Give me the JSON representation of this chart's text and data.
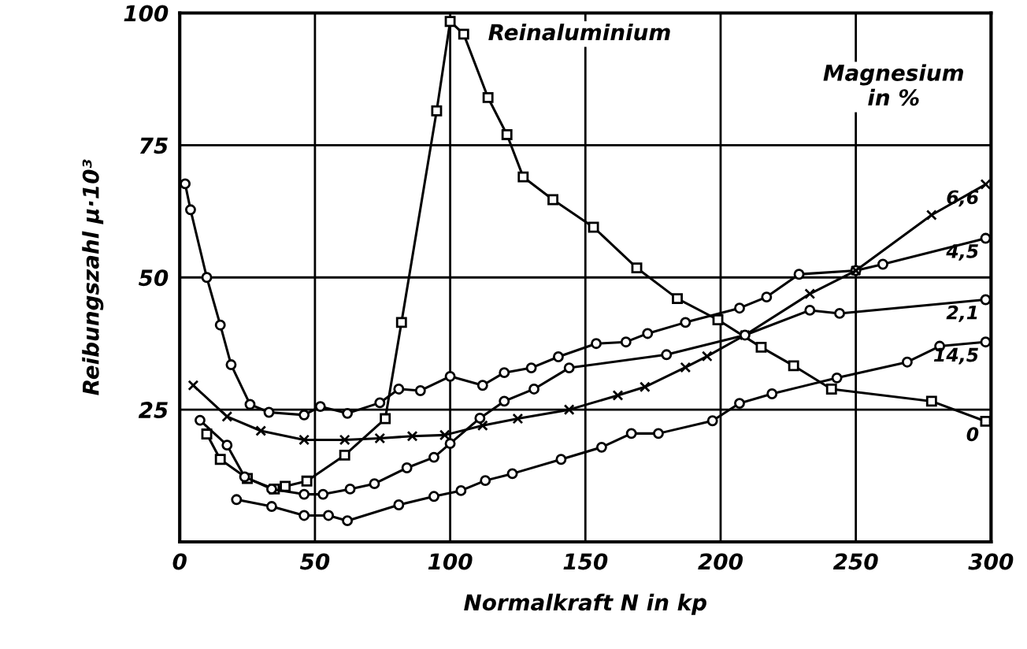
{
  "chart_data": {
    "type": "line",
    "xlabel": "Normalkraft N in kp",
    "ylabel": "Reibungszahl μ·10³",
    "xlim": [
      0,
      300
    ],
    "xticks": [
      0,
      50,
      100,
      150,
      200,
      250,
      300
    ],
    "ylim": [
      0,
      100
    ],
    "yticks": [
      25,
      50,
      75,
      100
    ],
    "grid": true,
    "legend": false,
    "annotations": [
      "Reinaluminium",
      "Magnesium\nin %"
    ],
    "series": [
      {
        "name": "0",
        "color": "#000000",
        "marker": "square",
        "x": [
          10,
          15,
          25,
          35,
          39,
          47,
          61,
          76,
          82,
          95,
          100,
          105,
          114,
          121,
          127,
          138,
          153,
          169,
          184,
          199,
          215,
          227,
          241,
          278,
          298
        ],
        "values": [
          20.4,
          15.6,
          12,
          10,
          10.5,
          11.5,
          16.4,
          23.3,
          41.5,
          81.5,
          98.4,
          96,
          84,
          77,
          69,
          64.7,
          59.5,
          51.8,
          46,
          42,
          36.8,
          33.3,
          28.9,
          26.6,
          22.8
        ]
      },
      {
        "name": "4,5",
        "color": "#000000",
        "marker": "circle",
        "x": [
          2,
          4,
          10,
          15,
          19,
          26,
          33,
          46,
          52,
          62,
          74,
          81,
          89,
          100,
          112,
          120,
          130,
          140,
          154,
          165,
          173,
          187,
          207,
          217,
          229,
          250,
          260,
          298
        ],
        "values": [
          67.7,
          62.8,
          50,
          41,
          33.5,
          26,
          24.5,
          24,
          25.6,
          24.3,
          26.3,
          28.9,
          28.6,
          31.3,
          29.6,
          32,
          32.9,
          35,
          37.5,
          37.8,
          39.4,
          41.5,
          44.2,
          46.3,
          50.6,
          51.3,
          52.5,
          57.4
        ]
      },
      {
        "name": "6,6",
        "color": "#000000",
        "marker": "cross",
        "x": [
          5,
          17.5,
          30,
          46,
          61,
          74,
          86,
          98,
          112,
          125,
          144,
          162,
          172,
          187,
          195,
          209,
          233,
          250,
          278,
          298
        ],
        "values": [
          29.6,
          23.7,
          21,
          19.3,
          19.3,
          19.6,
          20,
          20.2,
          22,
          23.3,
          25,
          27.7,
          29.3,
          33,
          35.1,
          39.1,
          46.9,
          51.3,
          61.8,
          67.6
        ]
      },
      {
        "name": "2,1",
        "color": "#000000",
        "marker": "circle",
        "x": [
          7.5,
          17.5,
          24,
          34,
          46,
          53,
          63,
          72,
          84,
          94,
          100,
          111,
          120,
          131,
          144,
          180,
          209,
          233,
          244,
          298
        ],
        "values": [
          23,
          18.3,
          12.3,
          10,
          9,
          9,
          10,
          11,
          14,
          16,
          18.6,
          23.4,
          26.6,
          28.9,
          32.9,
          35.4,
          39.1,
          43.8,
          43.2,
          45.8
        ]
      },
      {
        "name": "14,5",
        "color": "#000000",
        "marker": "circle",
        "x": [
          21,
          34,
          46,
          55,
          62,
          81,
          94,
          104,
          113,
          123,
          141,
          156,
          167,
          177,
          197,
          207,
          219,
          243,
          269,
          281,
          298
        ],
        "values": [
          8,
          6.7,
          5,
          5,
          4,
          7,
          8.6,
          9.7,
          11.6,
          12.9,
          15.6,
          17.9,
          20.5,
          20.5,
          22.9,
          26.2,
          28,
          31,
          34,
          37,
          37.8
        ]
      }
    ]
  }
}
